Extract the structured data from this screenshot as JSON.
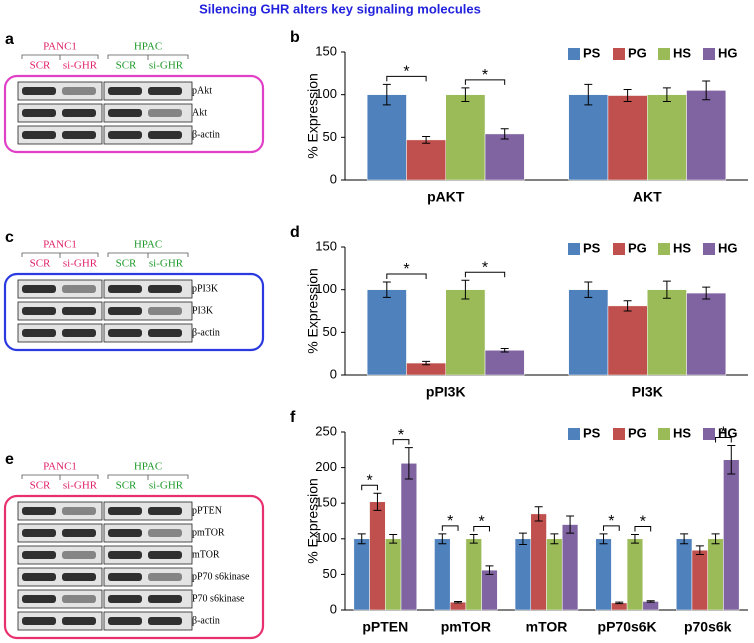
{
  "title": "Silencing GHR alters key signaling molecules",
  "blots": [
    {
      "panel": "a",
      "groups": [
        {
          "name": "PANC1",
          "lanes": [
            "SCR",
            "si-GHR"
          ]
        },
        {
          "name": "HPAC",
          "lanes": [
            "SCR",
            "si-GHR"
          ]
        }
      ],
      "rows": [
        "pAkt",
        "Akt",
        "β-actin"
      ]
    },
    {
      "panel": "c",
      "groups": [
        {
          "name": "PANC1",
          "lanes": [
            "SCR",
            "si-GHR"
          ]
        },
        {
          "name": "HPAC",
          "lanes": [
            "SCR",
            "si-GHR"
          ]
        }
      ],
      "rows": [
        "pPI3K",
        "PI3K",
        "β-actin"
      ]
    },
    {
      "panel": "e",
      "groups": [
        {
          "name": "PANC1",
          "lanes": [
            "SCR",
            "si-GHR"
          ]
        },
        {
          "name": "HPAC",
          "lanes": [
            "SCR",
            "si-GHR"
          ]
        }
      ],
      "rows": [
        "pPTEN",
        "pmTOR",
        "mTOR",
        "pP70 s6kinase",
        "P70 s6kinase",
        "β-actin"
      ]
    }
  ],
  "chart_data": [
    {
      "type": "bar",
      "panel": "b",
      "y_label": "% Expression",
      "categories": [
        "pAKT",
        "AKT"
      ],
      "ylim": [
        0,
        150
      ],
      "yticks": [
        0,
        50,
        100,
        150
      ],
      "legend": "upper right",
      "series": [
        {
          "name": "PS",
          "color": "#4f81bd",
          "values": [
            100,
            100
          ],
          "errors": [
            12,
            12
          ]
        },
        {
          "name": "PG",
          "color": "#c0504d",
          "values": [
            47,
            99
          ],
          "errors": [
            4,
            7
          ]
        },
        {
          "name": "HS",
          "color": "#9bbb59",
          "values": [
            100,
            100
          ],
          "errors": [
            8,
            8
          ]
        },
        {
          "name": "HG",
          "color": "#8064a2",
          "values": [
            54,
            105
          ],
          "errors": [
            6,
            11
          ]
        }
      ],
      "significance": [
        {
          "label": "*",
          "category": "pAKT",
          "pair": [
            "PS",
            "PG"
          ]
        },
        {
          "label": "*",
          "category": "pAKT",
          "pair": [
            "HS",
            "HG"
          ]
        }
      ]
    },
    {
      "type": "bar",
      "panel": "d",
      "y_label": "% Expression",
      "categories": [
        "pPI3K",
        "PI3K"
      ],
      "ylim": [
        0,
        150
      ],
      "yticks": [
        0,
        50,
        100,
        150
      ],
      "legend": "upper right",
      "series": [
        {
          "name": "PS",
          "color": "#4f81bd",
          "values": [
            100,
            100
          ],
          "errors": [
            9,
            9
          ]
        },
        {
          "name": "PG",
          "color": "#c0504d",
          "values": [
            14,
            81
          ],
          "errors": [
            2,
            6
          ]
        },
        {
          "name": "HS",
          "color": "#9bbb59",
          "values": [
            100,
            100
          ],
          "errors": [
            11,
            10
          ]
        },
        {
          "name": "HG",
          "color": "#8064a2",
          "values": [
            29,
            96
          ],
          "errors": [
            2,
            7
          ]
        }
      ],
      "significance": [
        {
          "label": "*",
          "category": "pPI3K",
          "pair": [
            "PS",
            "PG"
          ]
        },
        {
          "label": "*",
          "category": "pPI3K",
          "pair": [
            "HS",
            "HG"
          ]
        }
      ]
    },
    {
      "type": "bar",
      "panel": "f",
      "y_label": "% Expression",
      "categories": [
        "pPTEN",
        "pmTOR",
        "mTOR",
        "pP70s6K",
        "p70s6k"
      ],
      "ylim": [
        0,
        250
      ],
      "yticks": [
        0,
        50,
        100,
        150,
        200,
        250
      ],
      "legend": "upper right",
      "series": [
        {
          "name": "PS",
          "color": "#4f81bd",
          "values": [
            100,
            100,
            100,
            100,
            100
          ],
          "errors": [
            7,
            7,
            8,
            7,
            7
          ]
        },
        {
          "name": "PG",
          "color": "#c0504d",
          "values": [
            152,
            11,
            135,
            10,
            84
          ],
          "errors": [
            12,
            1,
            10,
            1,
            6
          ]
        },
        {
          "name": "HS",
          "color": "#9bbb59",
          "values": [
            100,
            100,
            100,
            100,
            100
          ],
          "errors": [
            6,
            6,
            7,
            6,
            7
          ]
        },
        {
          "name": "HG",
          "color": "#8064a2",
          "values": [
            206,
            56,
            120,
            12,
            211
          ],
          "errors": [
            22,
            6,
            12,
            1,
            20
          ]
        }
      ],
      "significance": [
        {
          "label": "*",
          "category": "pPTEN",
          "pair": [
            "PS",
            "PG"
          ]
        },
        {
          "label": "*",
          "category": "pPTEN",
          "pair": [
            "HS",
            "HG"
          ]
        },
        {
          "label": "*",
          "category": "pmTOR",
          "pair": [
            "PS",
            "PG"
          ]
        },
        {
          "label": "*",
          "category": "pmTOR",
          "pair": [
            "HS",
            "HG"
          ]
        },
        {
          "label": "*",
          "category": "pP70s6K",
          "pair": [
            "PS",
            "PG"
          ]
        },
        {
          "label": "*",
          "category": "pP70s6K",
          "pair": [
            "HS",
            "HG"
          ]
        },
        {
          "label": "*",
          "category": "p70s6k",
          "pair": [
            "HS",
            "HG"
          ]
        }
      ]
    }
  ]
}
